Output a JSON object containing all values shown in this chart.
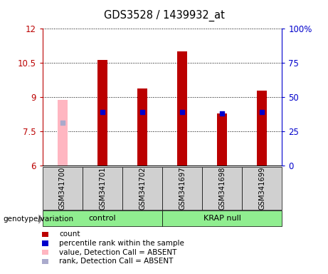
{
  "title": "GDS3528 / 1439932_at",
  "samples": [
    "GSM341700",
    "GSM341701",
    "GSM341702",
    "GSM341697",
    "GSM341698",
    "GSM341699"
  ],
  "groups": [
    "control",
    "control",
    "control",
    "KRAP null",
    "KRAP null",
    "KRAP null"
  ],
  "group_info": [
    {
      "name": "control",
      "start": 0,
      "end": 2
    },
    {
      "name": "KRAP null",
      "start": 3,
      "end": 5
    }
  ],
  "bar_values": [
    8.9,
    10.65,
    9.4,
    11.0,
    8.3,
    9.3
  ],
  "bar_colors": [
    "#FFB6C1",
    "#BB0000",
    "#BB0000",
    "#BB0000",
    "#BB0000",
    "#BB0000"
  ],
  "absent_flags": [
    true,
    false,
    false,
    false,
    false,
    false
  ],
  "percentile_values": [
    7.9,
    8.35,
    8.35,
    8.35,
    8.3,
    8.35
  ],
  "percentile_color": "#0000CC",
  "percentile_absent_color": "#AAAACC",
  "ylim": [
    6,
    12
  ],
  "yticks": [
    6,
    7.5,
    9,
    10.5,
    12
  ],
  "right_ytick_labels": [
    "100%",
    "75",
    "50",
    "25",
    "0"
  ],
  "right_ytick_vals": [
    100,
    75,
    50,
    25,
    0
  ],
  "bar_width": 0.25,
  "group_color": "#90EE90",
  "sample_box_color": "#D0D0D0",
  "legend_items": [
    {
      "label": "count",
      "color": "#BB0000"
    },
    {
      "label": "percentile rank within the sample",
      "color": "#0000CC"
    },
    {
      "label": "value, Detection Call = ABSENT",
      "color": "#FFB6C1"
    },
    {
      "label": "rank, Detection Call = ABSENT",
      "color": "#AAAACC"
    }
  ],
  "left_axis_color": "#BB0000",
  "right_axis_color": "#0000CC"
}
